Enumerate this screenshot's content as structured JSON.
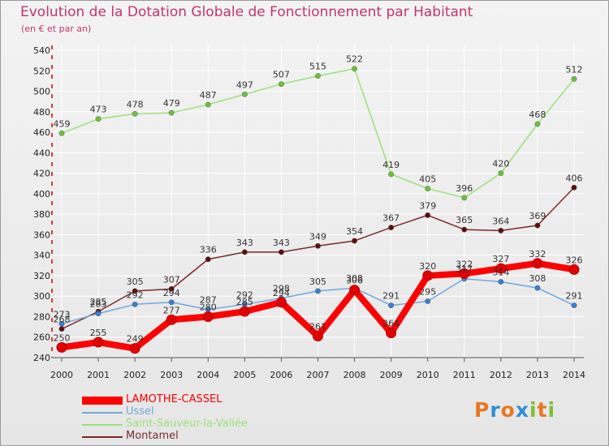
{
  "title": "Evolution de la Dotation Globale de Fonctionnement par Habitant",
  "subtitle": "(en € et par an)",
  "colors": {
    "title": "#c0356a",
    "grid": "#ffffff",
    "axis": "#555555",
    "ticks_red": "#cc0000"
  },
  "logo": {
    "letters": [
      "P",
      "r",
      "o",
      "x",
      "i",
      "t",
      "i"
    ],
    "colors": [
      "#e87722",
      "#2f8fd6",
      "#e87722",
      "#2f8fd6",
      "#7cbf2f",
      "#e87722",
      "#7cbf2f"
    ]
  },
  "chart_data": {
    "type": "line",
    "title": "Evolution de la Dotation Globale de Fonctionnement par Habitant",
    "subtitle": "(en € et par an)",
    "xlabel": "",
    "ylabel": "",
    "categories": [
      "2000",
      "2001",
      "2002",
      "2003",
      "2004",
      "2005",
      "2006",
      "2007",
      "2008",
      "2009",
      "2010",
      "2011",
      "2012",
      "2013",
      "2014"
    ],
    "ylim": [
      240,
      540
    ],
    "yticks": [
      240,
      260,
      280,
      300,
      320,
      340,
      360,
      380,
      400,
      420,
      440,
      460,
      480,
      500,
      520,
      540
    ],
    "grid": true,
    "legend_position": "bottom-left",
    "series": [
      {
        "name": "LAMOTHE-CASSEL",
        "color": "#ff0000",
        "marker": "#e00000",
        "width": 8,
        "marker_r": 6,
        "values": [
          250,
          255,
          249,
          277,
          280,
          285,
          294,
          261,
          306,
          264,
          320,
          322,
          327,
          332,
          326
        ]
      },
      {
        "name": "Ussel",
        "color": "#6fa8dc",
        "marker": "#3a7fcf",
        "width": 1.5,
        "marker_r": 3.2,
        "values": [
          273,
          283,
          292,
          294,
          287,
          292,
          298,
          305,
          308,
          291,
          295,
          317,
          314,
          308,
          291
        ]
      },
      {
        "name": "Saint-Sauveur-la-Vallée",
        "color": "#9be07a",
        "marker": "#6fc040",
        "width": 1.5,
        "marker_r": 3.2,
        "values": [
          459,
          473,
          478,
          479,
          487,
          497,
          507,
          515,
          522,
          419,
          405,
          396,
          420,
          468,
          512
        ]
      },
      {
        "name": "Montamel",
        "color": "#7a2a2a",
        "marker": "#5a1010",
        "width": 1.5,
        "marker_r": 3.2,
        "values": [
          268,
          285,
          305,
          307,
          336,
          343,
          343,
          349,
          354,
          367,
          379,
          365,
          364,
          369,
          406
        ]
      }
    ]
  }
}
